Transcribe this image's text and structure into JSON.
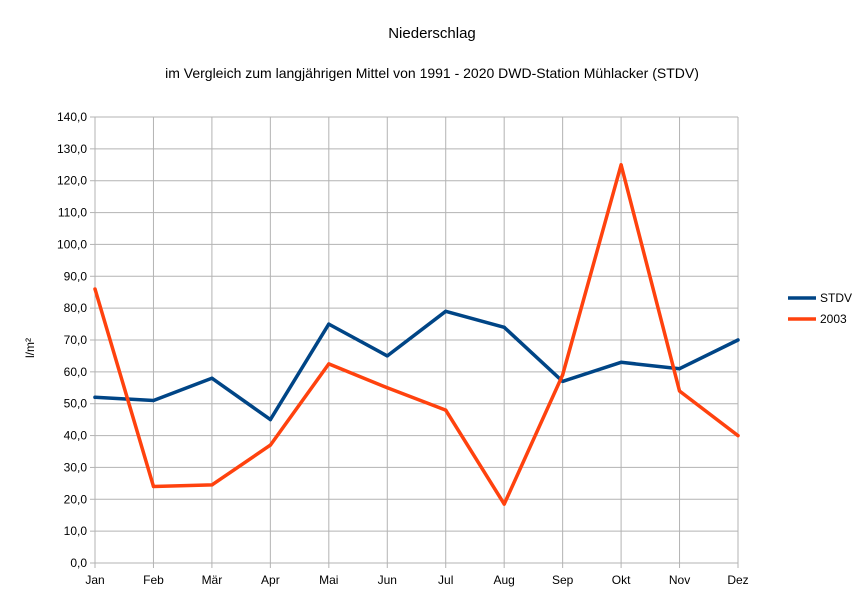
{
  "chart_data": {
    "type": "line",
    "title": "Niederschlag",
    "subtitle": "im Vergleich zum langjährigen Mittel von 1991 - 2020 DWD-Station Mühlacker (STDV)",
    "xlabel": "",
    "ylabel": "l/m²",
    "ylim": [
      0,
      140
    ],
    "ytick_step": 10,
    "ytick_labels": [
      "0,0",
      "10,0",
      "20,0",
      "30,0",
      "40,0",
      "50,0",
      "60,0",
      "70,0",
      "80,0",
      "90,0",
      "100,0",
      "110,0",
      "120,0",
      "130,0",
      "140,0"
    ],
    "categories": [
      "Jan",
      "Feb",
      "Mär",
      "Apr",
      "Mai",
      "Jun",
      "Jul",
      "Aug",
      "Sep",
      "Okt",
      "Nov",
      "Dez"
    ],
    "grid": true,
    "legend_position": "right",
    "series": [
      {
        "name": "STDV",
        "color": "#004586",
        "values": [
          52,
          51,
          58,
          45,
          75,
          65,
          79,
          74,
          57,
          63,
          61,
          70
        ]
      },
      {
        "name": "2003",
        "color": "#ff420e",
        "values": [
          86,
          24,
          24.5,
          37,
          62.5,
          55,
          48,
          18.5,
          59,
          125,
          54,
          40
        ]
      }
    ]
  }
}
